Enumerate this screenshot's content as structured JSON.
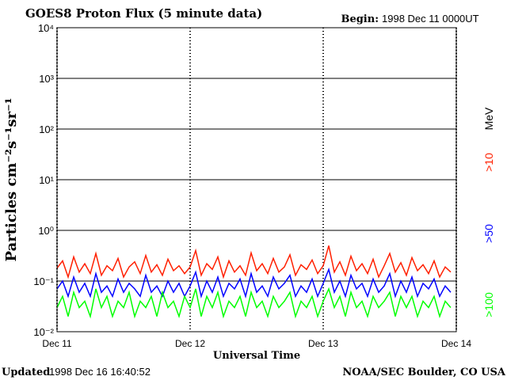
{
  "chart_data": {
    "type": "line",
    "title": "GOES8 Proton Flux (5 minute data)",
    "begin_label": "Begin:",
    "begin_value": "1998 Dec 11 0000UT",
    "updated_label": "Updated",
    "updated_value": "1998 Dec 16 16:40:52",
    "source": "NOAA/SEC Boulder, CO USA",
    "x_label": "Universal Time",
    "y_label": "Particles cm⁻²s⁻¹sr⁻¹",
    "unit_label": "MeV",
    "log_y": true,
    "grid": true,
    "xlim": [
      0,
      72
    ],
    "xticks": [
      {
        "value": 0,
        "label": "Dec 11"
      },
      {
        "value": 24,
        "label": "Dec 12"
      },
      {
        "value": 48,
        "label": "Dec 13"
      },
      {
        "value": 72,
        "label": "Dec 14"
      }
    ],
    "ylim": [
      0.01,
      10000
    ],
    "yticks": [
      {
        "value": 0.01,
        "label": "10⁻²"
      },
      {
        "value": 0.1,
        "label": "10⁻¹"
      },
      {
        "value": 1,
        "label": "10⁰"
      },
      {
        "value": 10,
        "label": "10¹"
      },
      {
        "value": 100,
        "label": "10²"
      },
      {
        "value": 1000,
        "label": "10³"
      },
      {
        "value": 10000,
        "label": "10⁴"
      }
    ],
    "x": [
      0,
      1,
      2,
      3,
      4,
      5,
      6,
      7,
      8,
      9,
      10,
      11,
      12,
      13,
      14,
      15,
      16,
      17,
      18,
      19,
      20,
      21,
      22,
      23,
      24,
      25,
      26,
      27,
      28,
      29,
      30,
      31,
      32,
      33,
      34,
      35,
      36,
      37,
      38,
      39,
      40,
      41,
      42,
      43,
      44,
      45,
      46,
      47,
      48,
      49,
      50,
      51,
      52,
      53,
      54,
      55,
      56,
      57,
      58,
      59,
      60,
      61,
      62,
      63,
      64,
      65,
      66,
      67,
      68,
      69,
      70,
      71
    ],
    "series": [
      {
        "name": ">10",
        "color": "#ff2000",
        "values": [
          0.18,
          0.25,
          0.12,
          0.3,
          0.15,
          0.22,
          0.14,
          0.35,
          0.13,
          0.2,
          0.16,
          0.28,
          0.12,
          0.19,
          0.24,
          0.14,
          0.32,
          0.15,
          0.21,
          0.13,
          0.27,
          0.16,
          0.2,
          0.14,
          0.19,
          0.4,
          0.13,
          0.22,
          0.17,
          0.3,
          0.12,
          0.25,
          0.15,
          0.2,
          0.13,
          0.36,
          0.16,
          0.22,
          0.14,
          0.28,
          0.15,
          0.19,
          0.33,
          0.13,
          0.21,
          0.17,
          0.26,
          0.14,
          0.2,
          0.5,
          0.15,
          0.24,
          0.13,
          0.31,
          0.16,
          0.22,
          0.14,
          0.27,
          0.12,
          0.2,
          0.35,
          0.15,
          0.23,
          0.13,
          0.29,
          0.16,
          0.21,
          0.14,
          0.25,
          0.12,
          0.19,
          0.15
        ]
      },
      {
        "name": ">50",
        "color": "#0000ff",
        "values": [
          0.07,
          0.1,
          0.05,
          0.12,
          0.06,
          0.09,
          0.05,
          0.14,
          0.06,
          0.08,
          0.05,
          0.11,
          0.06,
          0.09,
          0.07,
          0.05,
          0.13,
          0.06,
          0.08,
          0.05,
          0.1,
          0.06,
          0.09,
          0.05,
          0.08,
          0.15,
          0.05,
          0.1,
          0.06,
          0.12,
          0.05,
          0.09,
          0.07,
          0.11,
          0.05,
          0.14,
          0.06,
          0.08,
          0.05,
          0.12,
          0.07,
          0.09,
          0.13,
          0.05,
          0.08,
          0.06,
          0.11,
          0.05,
          0.09,
          0.17,
          0.06,
          0.1,
          0.05,
          0.13,
          0.07,
          0.09,
          0.05,
          0.11,
          0.06,
          0.08,
          0.14,
          0.05,
          0.1,
          0.06,
          0.12,
          0.05,
          0.09,
          0.07,
          0.11,
          0.05,
          0.08,
          0.06
        ]
      },
      {
        "name": ">100",
        "color": "#00ff00",
        "values": [
          0.03,
          0.05,
          0.02,
          0.06,
          0.03,
          0.04,
          0.02,
          0.07,
          0.03,
          0.05,
          0.02,
          0.04,
          0.03,
          0.06,
          0.02,
          0.04,
          0.03,
          0.05,
          0.02,
          0.06,
          0.03,
          0.04,
          0.02,
          0.05,
          0.03,
          0.07,
          0.02,
          0.05,
          0.03,
          0.06,
          0.02,
          0.04,
          0.03,
          0.05,
          0.02,
          0.06,
          0.03,
          0.04,
          0.02,
          0.05,
          0.03,
          0.04,
          0.06,
          0.02,
          0.04,
          0.03,
          0.05,
          0.02,
          0.04,
          0.07,
          0.03,
          0.05,
          0.02,
          0.06,
          0.03,
          0.04,
          0.02,
          0.05,
          0.03,
          0.04,
          0.06,
          0.02,
          0.05,
          0.03,
          0.05,
          0.02,
          0.04,
          0.03,
          0.05,
          0.02,
          0.04,
          0.03
        ]
      }
    ]
  }
}
